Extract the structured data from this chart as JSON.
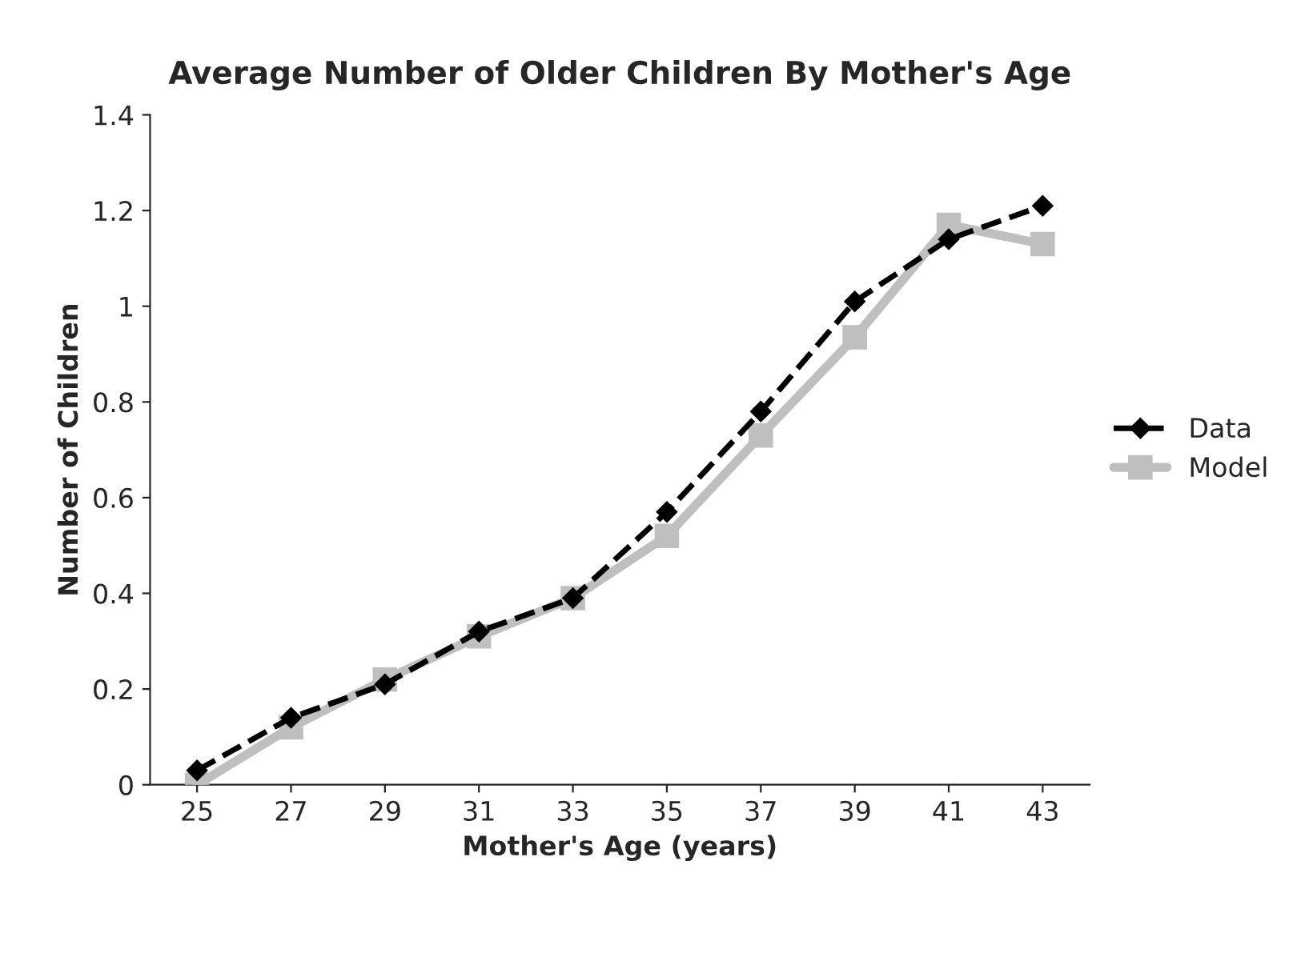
{
  "chart_data": {
    "type": "line",
    "title": "Average Number of Older Children By Mother's Age",
    "xlabel": "Mother's Age (years)",
    "ylabel": "Number of Children",
    "categories": [
      "25",
      "27",
      "29",
      "31",
      "33",
      "35",
      "37",
      "39",
      "41",
      "43"
    ],
    "series": [
      {
        "name": "Data",
        "color": "#000000",
        "marker": "diamond",
        "line_style": "dashed",
        "values": [
          0.03,
          0.14,
          0.21,
          0.32,
          0.39,
          0.57,
          0.78,
          1.01,
          1.14,
          1.21
        ]
      },
      {
        "name": "Model",
        "color": "#bfbfbf",
        "marker": "square",
        "line_style": "solid",
        "values": [
          0.0,
          0.12,
          0.22,
          0.31,
          0.39,
          0.52,
          0.73,
          0.935,
          1.17,
          1.13
        ]
      }
    ],
    "ylim": [
      0,
      1.4
    ],
    "yticks": [
      0,
      0.2,
      0.4,
      0.6,
      0.8,
      1,
      1.2,
      1.4
    ],
    "grid": false,
    "legend": "right"
  }
}
